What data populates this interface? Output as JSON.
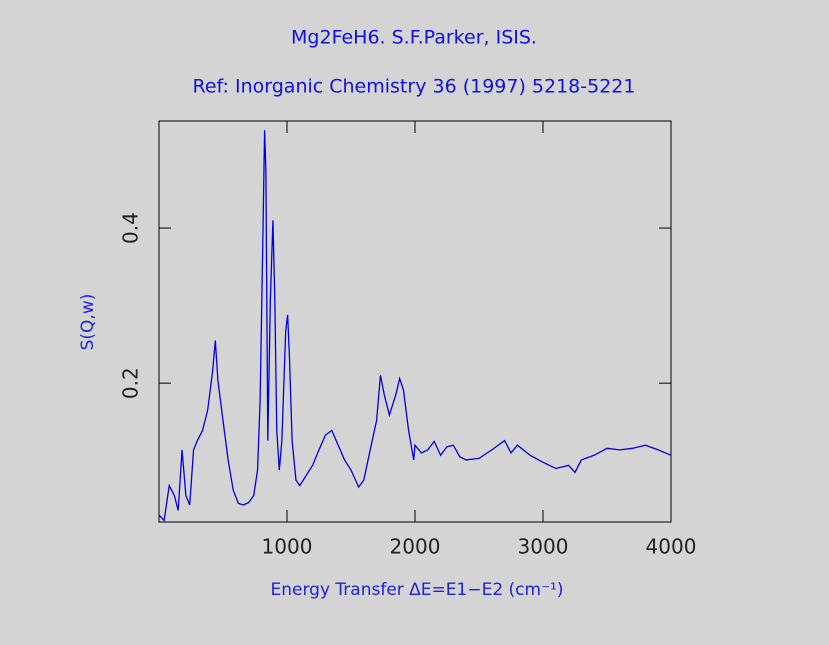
{
  "chart_data": {
    "type": "line",
    "title": "Mg2FeH6. S.F.Parker, ISIS.",
    "subtitle": "Ref: Inorganic Chemistry 36 (1997) 5218-5221",
    "x_label": "Energy Transfer ΔE=E1−E2 (cm⁻¹)",
    "y_label": "S(Q,w)",
    "xlim": [
      0,
      4000
    ],
    "ylim": [
      0.021,
      0.538
    ],
    "xticks": [
      1000,
      2000,
      3000,
      4000
    ],
    "yticks": [
      0.2,
      0.4
    ],
    "series": [
      {
        "color": "#0000e0",
        "x": [
          0,
          40,
          80,
          120,
          150,
          180,
          210,
          240,
          270,
          300,
          340,
          380,
          420,
          440,
          460,
          500,
          540,
          580,
          620,
          660,
          700,
          740,
          770,
          790,
          810,
          825,
          835,
          850,
          870,
          890,
          905,
          920,
          940,
          960,
          990,
          1005,
          1020,
          1040,
          1070,
          1100,
          1150,
          1200,
          1250,
          1300,
          1350,
          1400,
          1450,
          1500,
          1560,
          1600,
          1650,
          1700,
          1730,
          1760,
          1800,
          1850,
          1880,
          1910,
          1950,
          1990,
          2000,
          2050,
          2100,
          2150,
          2200,
          2250,
          2300,
          2350,
          2400,
          2500,
          2600,
          2700,
          2750,
          2800,
          2900,
          3000,
          3100,
          3200,
          3250,
          3300,
          3400,
          3500,
          3600,
          3700,
          3800,
          3900,
          4000
        ],
        "values": [
          0.03,
          0.023,
          0.068,
          0.055,
          0.036,
          0.114,
          0.055,
          0.043,
          0.114,
          0.126,
          0.139,
          0.165,
          0.217,
          0.255,
          0.204,
          0.152,
          0.101,
          0.062,
          0.045,
          0.043,
          0.046,
          0.055,
          0.088,
          0.178,
          0.372,
          0.526,
          0.475,
          0.126,
          0.307,
          0.41,
          0.307,
          0.139,
          0.088,
          0.126,
          0.268,
          0.288,
          0.23,
          0.126,
          0.075,
          0.068,
          0.081,
          0.094,
          0.114,
          0.133,
          0.139,
          0.12,
          0.101,
          0.088,
          0.066,
          0.075,
          0.114,
          0.152,
          0.21,
          0.185,
          0.159,
          0.185,
          0.206,
          0.191,
          0.139,
          0.101,
          0.12,
          0.11,
          0.114,
          0.125,
          0.107,
          0.118,
          0.12,
          0.105,
          0.101,
          0.103,
          0.114,
          0.126,
          0.11,
          0.12,
          0.107,
          0.098,
          0.09,
          0.094,
          0.085,
          0.101,
          0.107,
          0.116,
          0.114,
          0.116,
          0.12,
          0.114,
          0.107
        ]
      }
    ]
  }
}
